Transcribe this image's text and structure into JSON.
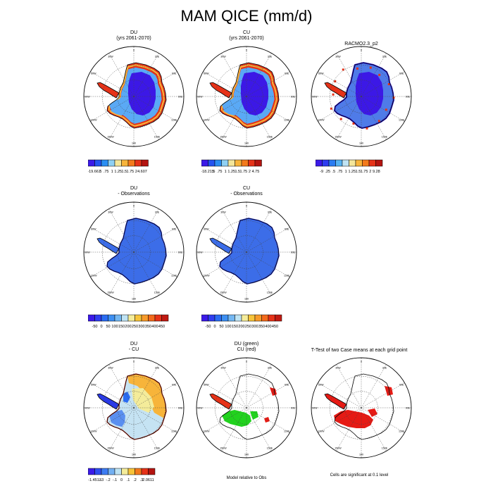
{
  "figure_title": "MAM QICE (mm/d)",
  "meridian_labels": [
    "0",
    "30E",
    "60E",
    "90E",
    "120E",
    "150E",
    "180",
    "150W",
    "120W",
    "90W",
    "60W",
    "30W"
  ],
  "colors": {
    "ice": "#3c6de8",
    "deep": "#3c18e6",
    "mid": "#5aa9f5",
    "coast": "#e63218",
    "warm": "#f7b43a",
    "pale": "#f4ec9a",
    "light": "#c5e3f3",
    "green": "#21d21e",
    "red": "#e61a14"
  },
  "chart_data": [
    {
      "type": "map",
      "panel": "du",
      "title_lines": [
        "DU",
        "(yrs 2061-2070)"
      ],
      "colorbar": {
        "labels": [
          "-19.667",
          ".5",
          ".75",
          "1",
          "1.25",
          "1.5",
          "1.75",
          "2",
          "4.607"
        ],
        "colors": [
          "#3b1ae8",
          "#2454f0",
          "#2a8ef2",
          "#8fd0f3",
          "#f4e69a",
          "#f7b43a",
          "#f37a1c",
          "#e63218",
          "#b41410"
        ]
      }
    },
    {
      "type": "map",
      "panel": "cu",
      "title_lines": [
        "CU",
        "(yrs 2061-2070)"
      ],
      "colorbar": {
        "labels": [
          "-18.215",
          ".5",
          ".75",
          "1",
          "1.25",
          "1.5",
          "1.75",
          "2",
          "4.75"
        ],
        "colors": [
          "#3b1ae8",
          "#2454f0",
          "#2a8ef2",
          "#8fd0f3",
          "#f4e69a",
          "#f7b43a",
          "#f37a1c",
          "#e63218",
          "#b41410"
        ]
      }
    },
    {
      "type": "map",
      "panel": "racmo",
      "title_lines": [
        "RACMO2.3_p2"
      ],
      "colorbar": {
        "labels": [
          "-9",
          ".25",
          ".5",
          ".75",
          "1",
          "1.25",
          "1.5",
          "1.75",
          "2",
          "9.28"
        ],
        "colors": [
          "#3b1ae8",
          "#2f3df0",
          "#2a7cf2",
          "#56b3f2",
          "#bfe3f3",
          "#f4e69a",
          "#f7b43a",
          "#f37a1c",
          "#e63218",
          "#b41410"
        ]
      }
    },
    {
      "type": "map",
      "panel": "du_obs",
      "title_lines": [
        "DU",
        "- Observations"
      ],
      "colorbar": {
        "labels": [
          "-50",
          "0",
          "50",
          "100",
          "150",
          "200",
          "250",
          "300",
          "350",
          "400",
          "450"
        ],
        "colors": [
          "#3b1ae8",
          "#2f3df0",
          "#2a6cf2",
          "#3d8ff2",
          "#73b7f2",
          "#bfe3f3",
          "#f4ec9a",
          "#f7c43a",
          "#f79a2a",
          "#f36a1c",
          "#e63218",
          "#c01a12"
        ]
      }
    },
    {
      "type": "map",
      "panel": "cu_obs",
      "title_lines": [
        "CU",
        "- Observations"
      ],
      "colorbar": {
        "labels": [
          "-50",
          "0",
          "50",
          "100",
          "150",
          "200",
          "250",
          "300",
          "350",
          "400",
          "450"
        ],
        "colors": [
          "#3b1ae8",
          "#2f3df0",
          "#2a6cf2",
          "#3d8ff2",
          "#73b7f2",
          "#bfe3f3",
          "#f4ec9a",
          "#f7c43a",
          "#f79a2a",
          "#f36a1c",
          "#e63218",
          "#c01a12"
        ]
      }
    },
    {
      "type": "map",
      "panel": "du_cu",
      "title_lines": [
        "DU",
        "- CU"
      ],
      "colorbar": {
        "labels": [
          "-1.4513",
          "-.3",
          "-.2",
          "-.1",
          "0",
          ".1",
          ".2",
          ".3",
          "2.0611"
        ],
        "colors": [
          "#3b1ae8",
          "#2f4ef0",
          "#3d7cf2",
          "#73b0f2",
          "#bfe3f3",
          "#f4ec9a",
          "#f7c43a",
          "#f37a1c",
          "#e63218",
          "#b41410"
        ]
      }
    },
    {
      "type": "map",
      "panel": "rel_obs",
      "title_lines": [
        "DU (green)",
        "CU (red)"
      ],
      "note": "Model relative to Obs"
    },
    {
      "type": "map",
      "panel": "ttest",
      "title_lines": [
        "T-Test of two Case means at each grid point"
      ],
      "note": "Cells are significant at 0.1 level"
    }
  ]
}
